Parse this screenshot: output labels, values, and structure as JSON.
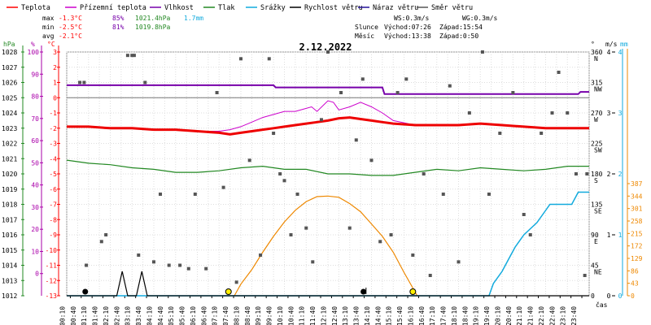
{
  "chart_data": {
    "type": "line",
    "title": "2.12.2022",
    "xlabel": "čas",
    "legend": [
      {
        "name": "Teplota",
        "color": "#ff0000"
      },
      {
        "name": "Přízemní teplota",
        "color": "#cc00cc"
      },
      {
        "name": "Vlhkost",
        "color": "#7700aa"
      },
      {
        "name": "Tlak",
        "color": "#228822"
      },
      {
        "name": "Srážky",
        "color": "#11aadd"
      },
      {
        "name": "Rychlost větru",
        "color": "#000000"
      },
      {
        "name": "Náraz větru",
        "color": "#221199"
      },
      {
        "name": "Směr větru",
        "color": "#555555"
      }
    ],
    "stats": {
      "max": {
        "label": "max",
        "temp": "-1.3°C",
        "hum": "85%",
        "press": "1021.4hPa",
        "rain": "1.7mm"
      },
      "min": {
        "label": "min",
        "temp": "-2.5°C",
        "hum": "81%",
        "press": "1019.8hPa"
      },
      "avg": {
        "label": "avg",
        "temp": "-2.1°C"
      }
    },
    "wind_info": {
      "ws": "WS:0.3m/s",
      "wg": "WG:0.3m/s"
    },
    "sun": {
      "label": "Slunce",
      "rise": "Východ:07:26",
      "set": "Západ:15:54"
    },
    "moon": {
      "label": "Měsíc",
      "rise": "Východ:13:38",
      "set": "Západ:0:50"
    },
    "axes": {
      "hpa_label": "hPa",
      "hpa_ticks": [
        "1028",
        "1027",
        "1026",
        "1025",
        "1024",
        "1023",
        "1022",
        "1021",
        "1020",
        "1019",
        "1018",
        "1017",
        "1016",
        "1015",
        "1014",
        "1013",
        "1012"
      ],
      "pct_label": "%",
      "pct_ticks": [
        "100",
        "90",
        "80",
        "70",
        "60",
        "50",
        "40",
        "30",
        "20",
        "10",
        "0"
      ],
      "temp_label": "°C",
      "temp_ticks": [
        "3",
        "2",
        "1",
        "0",
        "-1",
        "-2",
        "-3",
        "-4",
        "-5",
        "-6",
        "-7",
        "-8",
        "-9",
        "-10",
        "-11",
        "-12",
        "-13"
      ],
      "temp_range": [
        -13,
        3
      ],
      "deg_label": "°",
      "dir_ticks": [
        {
          "deg": "360",
          "dir": "N"
        },
        {
          "deg": "315",
          "dir": "NW"
        },
        {
          "deg": "270",
          "dir": "W"
        },
        {
          "deg": "225",
          "dir": "SW"
        },
        {
          "deg": "180",
          "dir": "S"
        },
        {
          "deg": "135",
          "dir": "SE"
        },
        {
          "deg": "90",
          "dir": "E"
        },
        {
          "deg": "45",
          "dir": "NE"
        },
        {
          "deg": "0",
          "dir": ""
        }
      ],
      "ms_label": "m/s",
      "ms_ticks": [
        "4",
        "3",
        "2",
        "1",
        "0"
      ],
      "mm_label": "mm",
      "mm_ticks": [
        "4",
        "3",
        "2",
        "1",
        "0"
      ],
      "rad_ticks": [
        "387",
        "344",
        "301",
        "258",
        "215",
        "172",
        "129",
        "86",
        "43",
        "0"
      ],
      "time_ticks": [
        "00:10",
        "00:40",
        "01:10",
        "01:40",
        "02:10",
        "02:40",
        "03:10",
        "03:40",
        "04:10",
        "04:40",
        "05:10",
        "05:40",
        "06:10",
        "06:40",
        "07:10",
        "07:40",
        "08:10",
        "08:40",
        "09:10",
        "09:40",
        "10:10",
        "10:40",
        "11:10",
        "11:40",
        "12:10",
        "12:40",
        "13:10",
        "13:40",
        "14:10",
        "14:40",
        "15:10",
        "15:40",
        "16:10",
        "16:40",
        "17:10",
        "17:40",
        "18:10",
        "18:40",
        "19:10",
        "19:40",
        "20:10",
        "20:40",
        "21:10",
        "21:40",
        "22:10",
        "22:40",
        "23:10",
        "23:40"
      ]
    },
    "series": {
      "temperature": {
        "unit": "°C",
        "x": [
          0,
          1,
          2,
          3,
          4,
          5,
          6,
          7,
          7.5,
          8,
          8.5,
          9,
          9.5,
          10,
          10.5,
          11,
          11.5,
          12,
          12.5,
          13,
          13.5,
          14,
          14.5,
          15,
          16,
          17,
          18,
          19,
          20,
          21,
          22,
          23,
          24
        ],
        "y": [
          -1.9,
          -1.9,
          -2.0,
          -2.0,
          -2.1,
          -2.1,
          -2.2,
          -2.3,
          -2.4,
          -2.3,
          -2.2,
          -2.1,
          -2.0,
          -1.9,
          -1.8,
          -1.7,
          -1.6,
          -1.5,
          -1.35,
          -1.3,
          -1.4,
          -1.5,
          -1.6,
          -1.7,
          -1.8,
          -1.8,
          -1.8,
          -1.7,
          -1.8,
          -1.9,
          -2.0,
          -2.0,
          -2.0
        ]
      },
      "ground_temperature": {
        "unit": "°C",
        "x": [
          0,
          1,
          2,
          3,
          4,
          5,
          6,
          7,
          7.5,
          8,
          8.5,
          9,
          9.5,
          10,
          10.5,
          11,
          11.25,
          11.5,
          12,
          12.25,
          12.5,
          13,
          13.5,
          14,
          14.5,
          15,
          16,
          17,
          18,
          19,
          20,
          21,
          22,
          23,
          24
        ],
        "y": [
          -1.9,
          -1.9,
          -2.0,
          -2.0,
          -2.1,
          -2.1,
          -2.2,
          -2.2,
          -2.1,
          -1.9,
          -1.6,
          -1.3,
          -1.1,
          -0.9,
          -0.9,
          -0.7,
          -0.6,
          -0.9,
          -0.2,
          -0.3,
          -0.8,
          -0.6,
          -0.3,
          -0.6,
          -1.0,
          -1.5,
          -1.8,
          -1.8,
          -1.8,
          -1.7,
          -1.8,
          -1.9,
          -2.0,
          -2.0,
          -2.0
        ]
      },
      "humidity": {
        "unit": "%",
        "x": [
          0,
          9.5,
          9.6,
          14.5,
          14.6,
          23.5,
          23.6,
          24
        ],
        "y": [
          85,
          85,
          84,
          84,
          81,
          81,
          82,
          82
        ]
      },
      "pressure": {
        "unit": "hPa",
        "x": [
          0,
          1,
          2,
          3,
          4,
          5,
          6,
          7,
          8,
          9,
          10,
          11,
          12,
          13,
          14,
          15,
          16,
          17,
          18,
          19,
          20,
          21,
          22,
          23,
          24
        ],
        "y": [
          1020.9,
          1020.7,
          1020.6,
          1020.4,
          1020.3,
          1020.1,
          1020.1,
          1020.2,
          1020.4,
          1020.5,
          1020.3,
          1020.3,
          1020.0,
          1020.0,
          1019.9,
          1019.9,
          1020.1,
          1020.3,
          1020.2,
          1020.4,
          1020.3,
          1020.2,
          1020.3,
          1020.5,
          1020.5
        ]
      },
      "rain": {
        "unit": "mm",
        "x": [
          0,
          19.4,
          19.6,
          20,
          20.3,
          20.6,
          21,
          21.3,
          21.6,
          22,
          22.2,
          22.6,
          23,
          23.2,
          23.5,
          24
        ],
        "y": [
          0,
          0,
          0.2,
          0.4,
          0.6,
          0.8,
          1.0,
          1.1,
          1.2,
          1.4,
          1.5,
          1.5,
          1.5,
          1.5,
          1.7,
          1.7
        ]
      },
      "wind_speed": {
        "unit": "m/s",
        "x": [
          0,
          2.3,
          2.55,
          2.8,
          3.2,
          3.45,
          3.7,
          24
        ],
        "y": [
          0,
          0,
          0.6,
          0,
          0,
          0.6,
          0,
          0
        ]
      },
      "solar_radiation": {
        "unit": "W/m²",
        "x": [
          7.7,
          8,
          8.5,
          9,
          9.5,
          10,
          10.5,
          11,
          11.5,
          12,
          12.5,
          13,
          13.5,
          14,
          14.5,
          15,
          15.5,
          16.1
        ],
        "y": [
          0,
          40,
          90,
          150,
          205,
          255,
          295,
          325,
          342,
          344,
          340,
          318,
          290,
          248,
          205,
          150,
          80,
          0
        ]
      },
      "wind_direction": {
        "unit": "°",
        "x": [
          0.6,
          0.8,
          0.9,
          1.6,
          1.8,
          2.8,
          3.0,
          3.1,
          3.3,
          3.6,
          4.0,
          4.3,
          4.7,
          5.2,
          5.6,
          5.9,
          6.4,
          6.9,
          7.2,
          7.8,
          8.0,
          8.4,
          8.9,
          9.3,
          9.5,
          9.8,
          10.0,
          10.3,
          10.6,
          11.0,
          11.3,
          11.7,
          12.0,
          12.6,
          13.0,
          13.3,
          13.6,
          14.0,
          14.4,
          14.9,
          15.2,
          15.6,
          15.9,
          16.4,
          16.7,
          17.3,
          17.6,
          18.0,
          18.5,
          19.1,
          19.4,
          19.9,
          20.5,
          21.0,
          21.3,
          21.8,
          22.3,
          22.6,
          23.0,
          23.4,
          23.8,
          23.9
        ],
        "y": [
          315,
          315,
          45,
          80,
          90,
          355,
          355,
          355,
          60,
          315,
          50,
          150,
          45,
          45,
          40,
          150,
          40,
          300,
          160,
          20,
          350,
          200,
          60,
          350,
          240,
          180,
          170,
          90,
          150,
          100,
          50,
          260,
          360,
          300,
          100,
          230,
          320,
          200,
          80,
          90,
          300,
          320,
          60,
          180,
          30,
          150,
          310,
          50,
          270,
          360,
          150,
          240,
          300,
          120,
          90,
          240,
          270,
          330,
          270,
          180,
          30,
          180
        ]
      }
    }
  }
}
